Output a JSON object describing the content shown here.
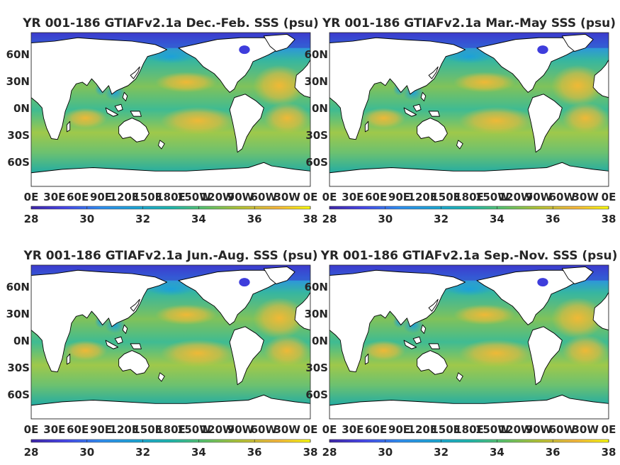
{
  "chart_data": [
    {
      "type": "heatmap",
      "title": "YR 001-186 GTIAFv2.1a Dec.-Feb. SSS (psu)",
      "season": "Dec.-Feb.",
      "xticks": [
        "0E",
        "30E",
        "60E",
        "90E",
        "120E",
        "150E",
        "180E",
        "150W",
        "120W",
        "90W",
        "60W",
        "30W",
        "0E"
      ],
      "yticks": [
        "60N",
        "30N",
        "0N",
        "30S",
        "60S"
      ],
      "colorbar": {
        "ticks": [
          28,
          30,
          32,
          34,
          36,
          38
        ],
        "range": [
          28,
          38
        ]
      },
      "colormap": "parula"
    },
    {
      "type": "heatmap",
      "title": "YR 001-186 GTIAFv2.1a Mar.-May SSS (psu)",
      "season": "Mar.-May",
      "xticks": [
        "0E",
        "30E",
        "60E",
        "90E",
        "120E",
        "150E",
        "180E",
        "150W",
        "120W",
        "90W",
        "60W",
        "30W",
        "0E"
      ],
      "yticks": [
        "60N",
        "30N",
        "0N",
        "30S",
        "60S"
      ],
      "colorbar": {
        "ticks": [
          28,
          30,
          32,
          34,
          36,
          38
        ],
        "range": [
          28,
          38
        ]
      },
      "colormap": "parula"
    },
    {
      "type": "heatmap",
      "title": "YR 001-186 GTIAFv2.1a Jun.-Aug. SSS (psu)",
      "season": "Jun.-Aug.",
      "xticks": [
        "0E",
        "30E",
        "60E",
        "90E",
        "120E",
        "150E",
        "180E",
        "150W",
        "120W",
        "90W",
        "60W",
        "30W",
        "0E"
      ],
      "yticks": [
        "60N",
        "30N",
        "0N",
        "30S",
        "60S"
      ],
      "colorbar": {
        "ticks": [
          28,
          30,
          32,
          34,
          36,
          38
        ],
        "range": [
          28,
          38
        ]
      },
      "colormap": "parula"
    },
    {
      "type": "heatmap",
      "title": "YR 001-186 GTIAFv2.1a Sep.-Nov. SSS (psu)",
      "season": "Sep.-Nov.",
      "xticks": [
        "0E",
        "30E",
        "60E",
        "90E",
        "120E",
        "150E",
        "180E",
        "150W",
        "120W",
        "90W",
        "60W",
        "30W",
        "0E"
      ],
      "yticks": [
        "60N",
        "30N",
        "0N",
        "30S",
        "60S"
      ],
      "colorbar": {
        "ticks": [
          28,
          30,
          32,
          34,
          36,
          38
        ],
        "range": [
          28,
          38
        ]
      },
      "colormap": "parula"
    }
  ],
  "colors": {
    "fresh": "#3e26a8",
    "mid_low": "#1e9ae0",
    "mid": "#2bb5a5",
    "mid_high": "#9ec94a",
    "salty": "#f5b834",
    "max": "#f9fb0e",
    "land": "#ffffff",
    "coast": "#000000"
  }
}
